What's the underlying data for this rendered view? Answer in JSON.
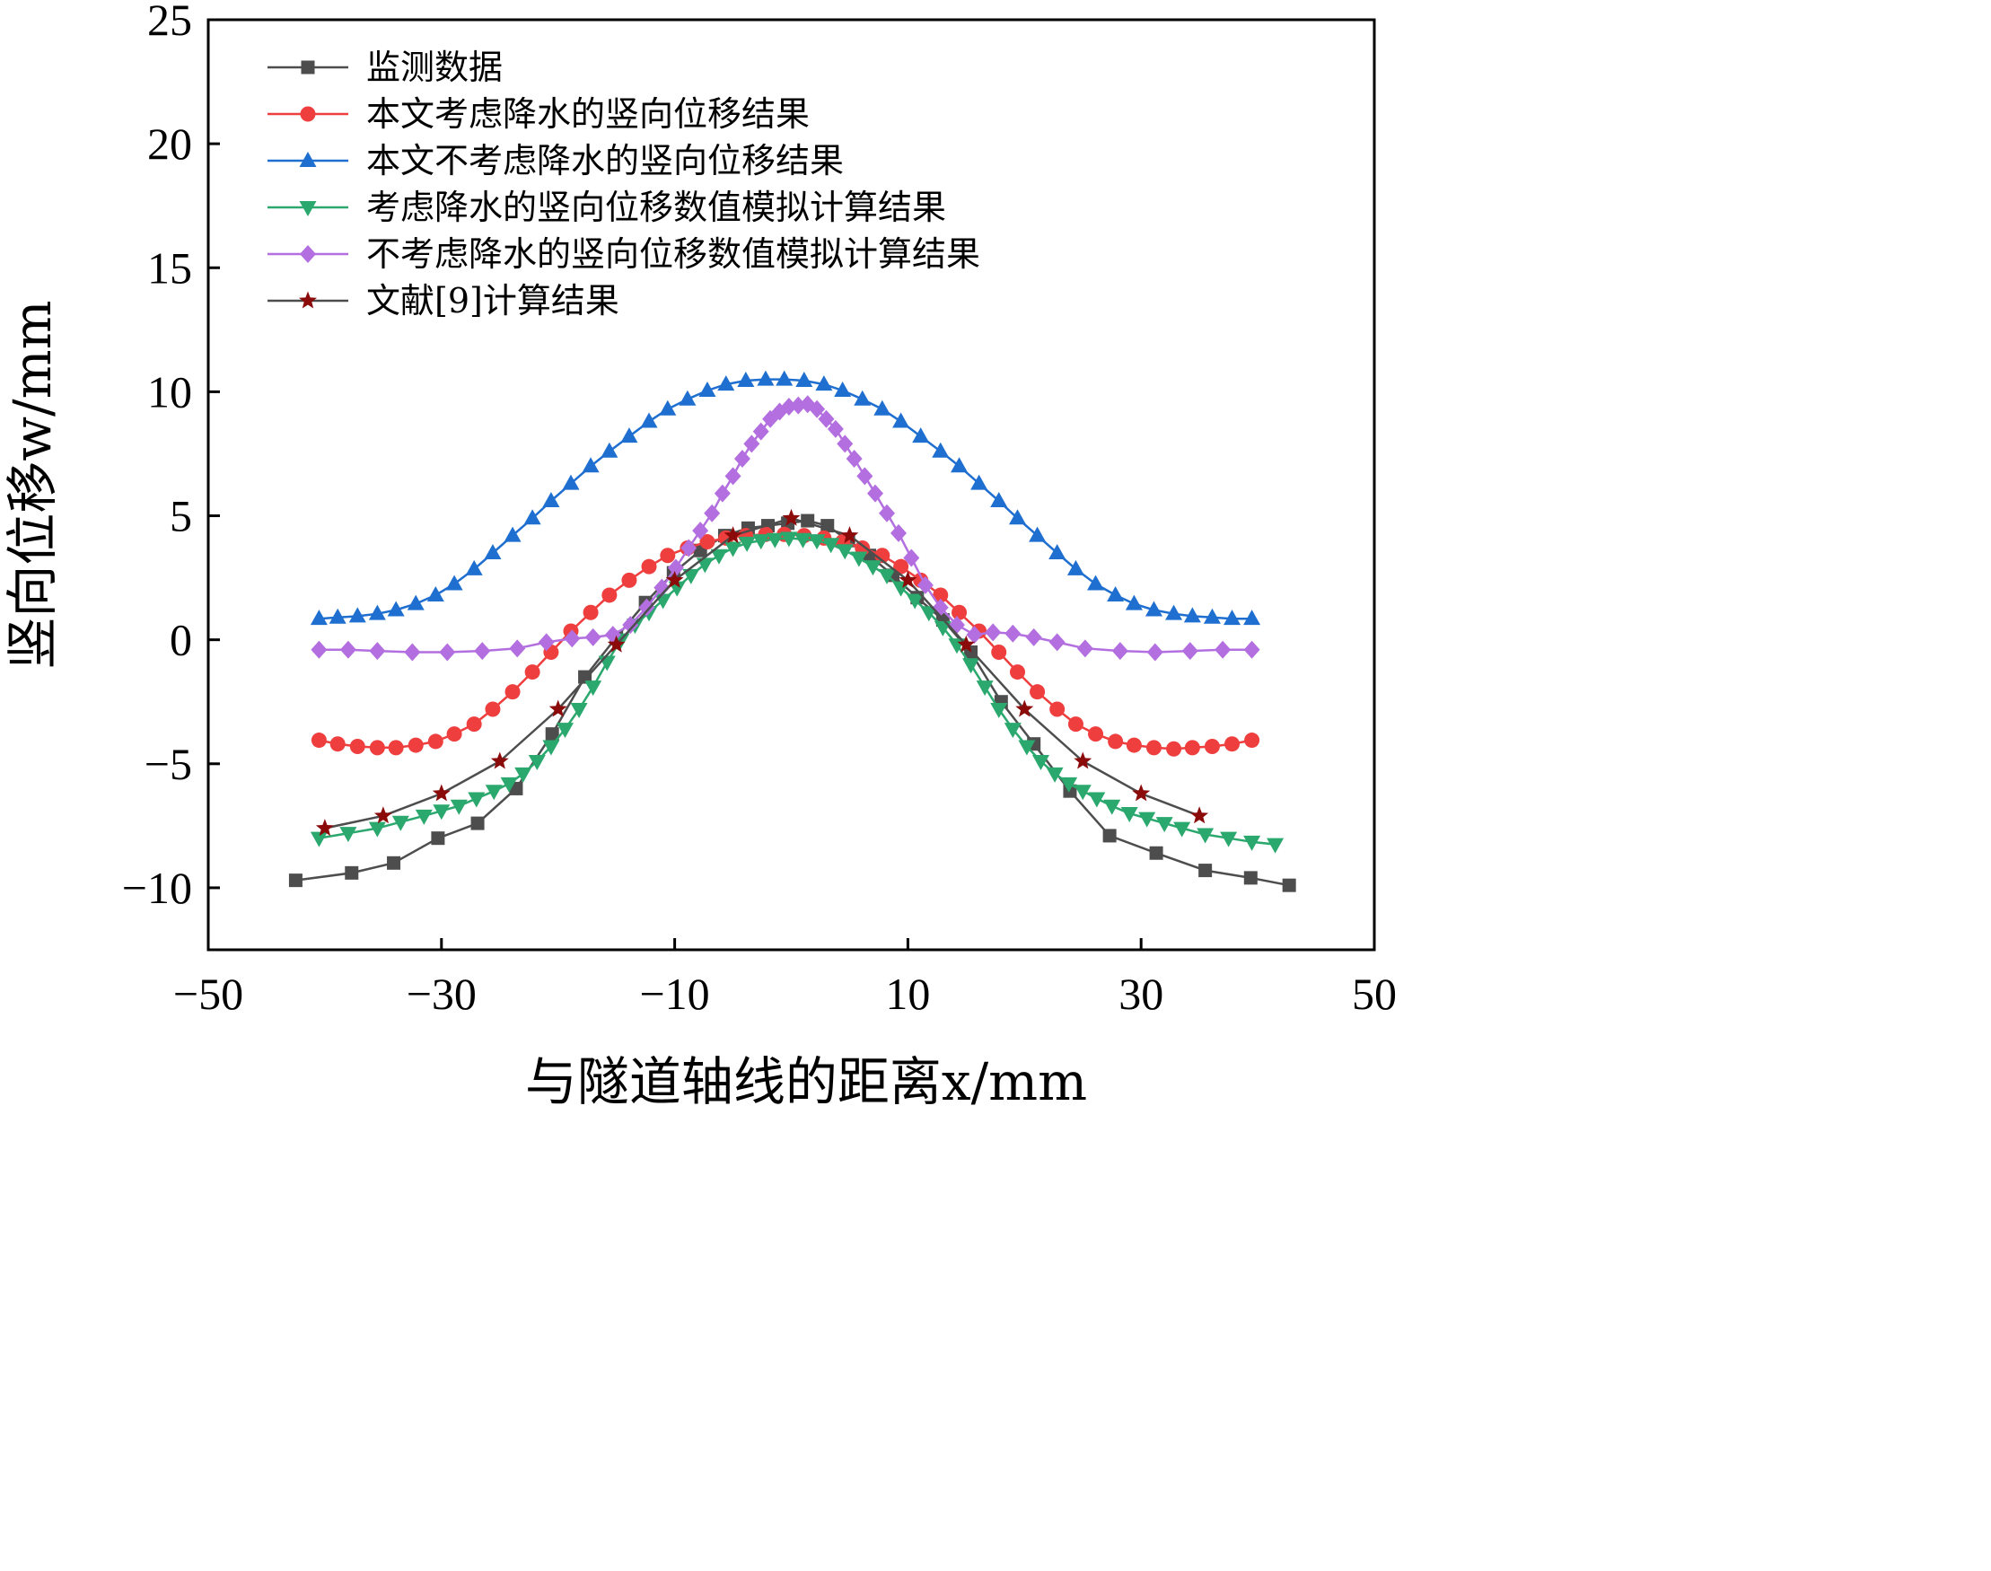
{
  "chart_data": {
    "type": "line",
    "title": "",
    "xlabel": "与隧道轴线的距离x/mm",
    "ylabel": "竖向位移w/mm",
    "xlim": [
      -50,
      50
    ],
    "ylim": [
      -12.5,
      25
    ],
    "xticks": [
      -50,
      -30,
      -10,
      10,
      30,
      50
    ],
    "yticks": [
      -10,
      -5,
      0,
      5,
      10,
      15,
      20,
      25
    ],
    "x_tick_labels": [
      "−50",
      "−30",
      "−10",
      "10",
      "30",
      "50"
    ],
    "y_tick_labels": [
      "−10",
      "−5",
      "0",
      "5",
      "10",
      "15",
      "20",
      "25"
    ],
    "grid": false,
    "legend_position": "top-left",
    "series": [
      {
        "name": "监测数据",
        "color": "#4d4d4d",
        "marker": "square",
        "x": [
          -42.5,
          -37.7,
          -34.1,
          -30.3,
          -26.9,
          -23.6,
          -20.5,
          -17.7,
          -15.0,
          -12.5,
          -10.1,
          -7.8,
          -5.7,
          -3.7,
          -2.0,
          -0.3,
          1.4,
          3.1,
          4.9,
          6.7,
          8.7,
          10.8,
          13.0,
          15.4,
          18.0,
          20.8,
          23.9,
          27.3,
          31.3,
          35.5,
          39.4,
          42.7
        ],
        "y": [
          -9.7,
          -9.4,
          -9.0,
          -8.0,
          -7.4,
          -6.0,
          -3.8,
          -1.5,
          0.1,
          1.5,
          2.7,
          3.6,
          4.2,
          4.5,
          4.6,
          4.7,
          4.8,
          4.6,
          4.0,
          3.4,
          2.6,
          1.7,
          0.8,
          -0.5,
          -2.5,
          -4.2,
          -6.1,
          -7.9,
          -8.6,
          -9.3,
          -9.6,
          -9.9
        ]
      },
      {
        "name": "本文考虑降水的竖向位移结果",
        "color": "#ef3e3e",
        "marker": "circle",
        "x": [
          -40.5,
          -38.9,
          -37.2,
          -35.5,
          -33.9,
          -32.2,
          -30.5,
          -28.9,
          -27.2,
          -25.6,
          -23.9,
          -22.2,
          -20.6,
          -18.9,
          -17.2,
          -15.6,
          -13.9,
          -12.2,
          -10.6,
          -8.9,
          -7.2,
          -5.6,
          -3.9,
          -2.2,
          -0.6,
          1.1,
          2.8,
          4.4,
          6.1,
          7.8,
          9.4,
          11.1,
          12.8,
          14.4,
          16.1,
          17.8,
          19.4,
          21.1,
          22.8,
          24.4,
          26.1,
          27.8,
          29.4,
          31.1,
          32.8,
          34.4,
          36.1,
          37.8,
          39.5
        ],
        "y": [
          -4.05,
          -4.2,
          -4.3,
          -4.35,
          -4.35,
          -4.25,
          -4.1,
          -3.8,
          -3.4,
          -2.8,
          -2.1,
          -1.3,
          -0.5,
          0.35,
          1.1,
          1.8,
          2.4,
          2.95,
          3.4,
          3.7,
          3.95,
          4.1,
          4.2,
          4.25,
          4.25,
          4.2,
          4.1,
          3.95,
          3.7,
          3.4,
          2.95,
          2.4,
          1.8,
          1.1,
          0.35,
          -0.5,
          -1.3,
          -2.1,
          -2.8,
          -3.4,
          -3.8,
          -4.1,
          -4.25,
          -4.35,
          -4.4,
          -4.35,
          -4.3,
          -4.2,
          -4.05
        ]
      },
      {
        "name": "本文不考虑降水的竖向位移结果",
        "color": "#1f6fd1",
        "marker": "triangle-up",
        "x": [
          -40.5,
          -38.9,
          -37.2,
          -35.5,
          -33.9,
          -32.2,
          -30.5,
          -28.9,
          -27.2,
          -25.6,
          -23.9,
          -22.2,
          -20.6,
          -18.9,
          -17.2,
          -15.6,
          -13.9,
          -12.2,
          -10.6,
          -8.9,
          -7.2,
          -5.6,
          -3.9,
          -2.2,
          -0.6,
          1.1,
          2.8,
          4.4,
          6.1,
          7.8,
          9.4,
          11.1,
          12.8,
          14.4,
          16.1,
          17.8,
          19.4,
          21.1,
          22.8,
          24.4,
          26.1,
          27.8,
          29.4,
          31.1,
          32.8,
          34.4,
          36.1,
          37.8,
          39.5
        ],
        "y": [
          0.85,
          0.9,
          0.95,
          1.05,
          1.2,
          1.45,
          1.8,
          2.25,
          2.85,
          3.5,
          4.2,
          4.9,
          5.6,
          6.3,
          7.0,
          7.6,
          8.2,
          8.8,
          9.3,
          9.7,
          10.05,
          10.3,
          10.45,
          10.5,
          10.5,
          10.45,
          10.3,
          10.05,
          9.7,
          9.3,
          8.8,
          8.2,
          7.6,
          7.0,
          6.3,
          5.6,
          4.9,
          4.2,
          3.5,
          2.85,
          2.25,
          1.8,
          1.45,
          1.2,
          1.05,
          0.95,
          0.9,
          0.85,
          0.85
        ]
      },
      {
        "name": "考虑降水的竖向位移数值模拟计算结果",
        "color": "#2aa86d",
        "marker": "triangle-down",
        "x": [
          -40.5,
          -38.0,
          -35.5,
          -33.5,
          -31.5,
          -30.0,
          -28.5,
          -27.0,
          -25.5,
          -24.2,
          -23.0,
          -21.8,
          -20.6,
          -19.4,
          -18.2,
          -17.0,
          -15.8,
          -14.6,
          -13.4,
          -12.2,
          -11.0,
          -9.8,
          -8.6,
          -7.4,
          -6.2,
          -5.0,
          -3.8,
          -2.6,
          -1.4,
          -0.2,
          1.0,
          2.2,
          3.4,
          4.6,
          5.8,
          7.0,
          8.2,
          9.4,
          10.6,
          11.8,
          13.0,
          14.2,
          15.4,
          16.6,
          17.8,
          19.0,
          20.2,
          21.4,
          22.6,
          23.8,
          25.0,
          26.2,
          27.5,
          29.0,
          30.5,
          32.0,
          33.5,
          35.5,
          37.5,
          39.5,
          41.5
        ],
        "y": [
          -8.0,
          -7.8,
          -7.6,
          -7.35,
          -7.1,
          -6.9,
          -6.7,
          -6.4,
          -6.1,
          -5.8,
          -5.4,
          -4.9,
          -4.3,
          -3.6,
          -2.8,
          -1.9,
          -0.9,
          0.0,
          0.6,
          1.1,
          1.6,
          2.1,
          2.6,
          3.05,
          3.4,
          3.7,
          3.9,
          4.0,
          4.05,
          4.1,
          4.05,
          4.0,
          3.85,
          3.6,
          3.3,
          2.95,
          2.6,
          2.1,
          1.6,
          1.1,
          0.5,
          -0.2,
          -1.0,
          -1.9,
          -2.8,
          -3.6,
          -4.3,
          -4.9,
          -5.4,
          -5.8,
          -6.1,
          -6.4,
          -6.7,
          -7.0,
          -7.2,
          -7.4,
          -7.6,
          -7.85,
          -8.0,
          -8.15,
          -8.25
        ]
      },
      {
        "name": "不考虑降水的竖向位移数值模拟计算结果",
        "color": "#b36fe0",
        "marker": "diamond",
        "x": [
          -40.5,
          -38.0,
          -35.5,
          -32.5,
          -29.5,
          -26.5,
          -23.5,
          -21.0,
          -18.8,
          -17.0,
          -15.3,
          -13.8,
          -12.4,
          -11.1,
          -9.9,
          -8.8,
          -7.8,
          -6.8,
          -5.9,
          -5.0,
          -4.2,
          -3.4,
          -2.6,
          -1.8,
          -1.0,
          -0.2,
          0.6,
          1.4,
          2.2,
          3.0,
          3.8,
          4.6,
          5.4,
          6.3,
          7.2,
          8.2,
          9.2,
          10.3,
          11.5,
          12.8,
          14.2,
          15.7,
          17.3,
          19.0,
          20.8,
          22.8,
          25.2,
          28.2,
          31.2,
          34.2,
          37.0,
          39.5
        ],
        "y": [
          -0.4,
          -0.4,
          -0.45,
          -0.5,
          -0.5,
          -0.45,
          -0.35,
          -0.1,
          0.05,
          0.1,
          0.2,
          0.6,
          1.3,
          2.1,
          2.9,
          3.7,
          4.4,
          5.1,
          5.9,
          6.6,
          7.3,
          7.9,
          8.4,
          8.9,
          9.2,
          9.4,
          9.45,
          9.5,
          9.3,
          8.9,
          8.5,
          7.9,
          7.3,
          6.6,
          5.9,
          5.1,
          4.3,
          3.3,
          2.2,
          1.3,
          0.6,
          0.2,
          0.3,
          0.25,
          0.1,
          -0.1,
          -0.35,
          -0.45,
          -0.5,
          -0.45,
          -0.4,
          -0.4
        ]
      },
      {
        "name": "文献[9]计算结果",
        "color": "#4d4d4d",
        "marker": "star",
        "marker_color": "#8b0a0a",
        "x": [
          -40.0,
          -35.0,
          -30.0,
          -25.0,
          -20.0,
          -15.0,
          -10.0,
          -5.0,
          0.0,
          5.0,
          10.0,
          15.0,
          20.0,
          25.0,
          30.0,
          35.0
        ],
        "y": [
          -7.6,
          -7.1,
          -6.2,
          -4.9,
          -2.8,
          -0.2,
          2.4,
          4.2,
          4.9,
          4.2,
          2.4,
          -0.2,
          -2.8,
          -4.9,
          -6.2,
          -7.1
        ]
      }
    ]
  }
}
